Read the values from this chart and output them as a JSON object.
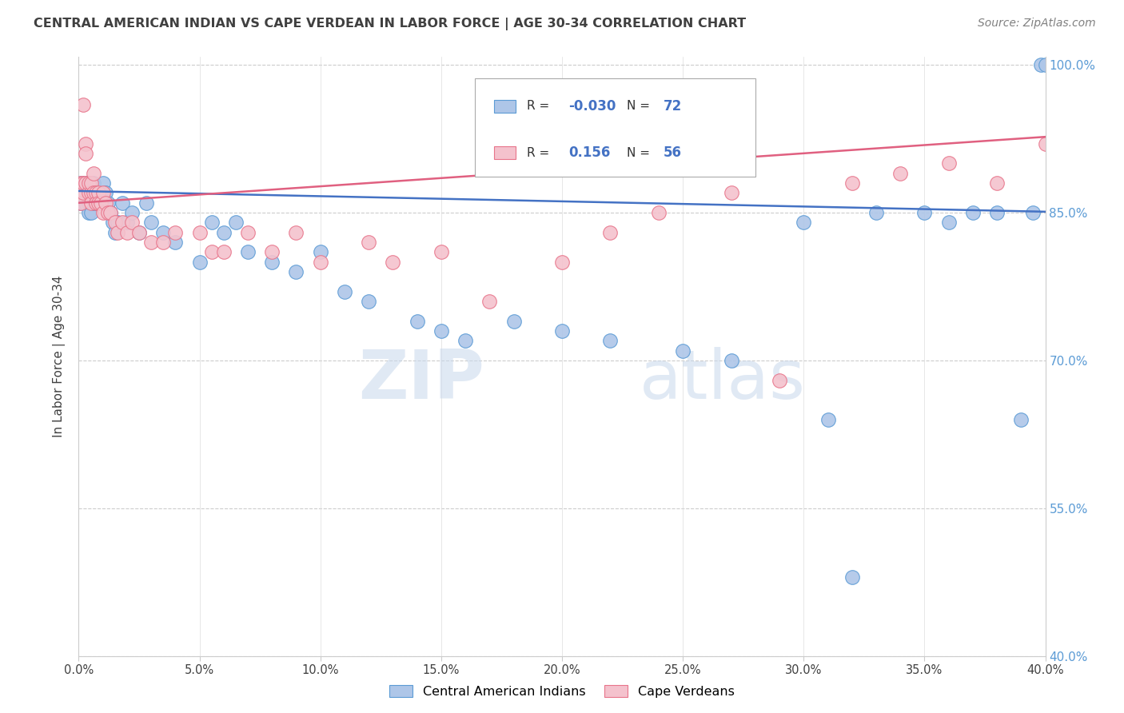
{
  "title": "CENTRAL AMERICAN INDIAN VS CAPE VERDEAN IN LABOR FORCE | AGE 30-34 CORRELATION CHART",
  "source": "Source: ZipAtlas.com",
  "ylabel": "In Labor Force | Age 30-34",
  "xlim": [
    0.0,
    0.4
  ],
  "ylim": [
    0.4,
    1.008
  ],
  "xtick_labels": [
    "0.0%",
    "",
    "5.0%",
    "",
    "10.0%",
    "",
    "15.0%",
    "",
    "20.0%",
    "",
    "25.0%",
    "",
    "30.0%",
    "",
    "35.0%",
    "",
    "40.0%"
  ],
  "xtick_vals": [
    0.0,
    0.025,
    0.05,
    0.075,
    0.1,
    0.125,
    0.15,
    0.175,
    0.2,
    0.225,
    0.25,
    0.275,
    0.3,
    0.325,
    0.35,
    0.375,
    0.4
  ],
  "ytick_vals": [
    0.4,
    0.55,
    0.7,
    0.85,
    1.0
  ],
  "ytick_labels": [
    "40.0%",
    "55.0%",
    "70.0%",
    "85.0%",
    "100.0%"
  ],
  "blue_fill": "#aec6e8",
  "blue_edge": "#5b9bd5",
  "pink_fill": "#f4c2cd",
  "pink_edge": "#e8748a",
  "blue_line": "#4472c4",
  "pink_line": "#e06080",
  "legend_r_blue": "-0.030",
  "legend_n_blue": "72",
  "legend_r_pink": "0.156",
  "legend_n_pink": "56",
  "label_blue": "Central American Indians",
  "label_pink": "Cape Verdeans",
  "watermark": "ZIPatlas",
  "right_tick_color": "#5b9bd5",
  "title_color": "#404040",
  "source_color": "#808080",
  "blue_points_x": [
    0.001,
    0.001,
    0.001,
    0.002,
    0.002,
    0.002,
    0.002,
    0.003,
    0.003,
    0.003,
    0.003,
    0.004,
    0.004,
    0.004,
    0.004,
    0.005,
    0.005,
    0.005,
    0.006,
    0.006,
    0.006,
    0.007,
    0.007,
    0.008,
    0.008,
    0.009,
    0.01,
    0.01,
    0.011,
    0.012,
    0.013,
    0.014,
    0.015,
    0.016,
    0.018,
    0.02,
    0.022,
    0.025,
    0.028,
    0.03,
    0.035,
    0.04,
    0.05,
    0.055,
    0.06,
    0.065,
    0.07,
    0.08,
    0.09,
    0.1,
    0.11,
    0.12,
    0.14,
    0.15,
    0.16,
    0.18,
    0.2,
    0.22,
    0.25,
    0.27,
    0.3,
    0.31,
    0.32,
    0.33,
    0.35,
    0.36,
    0.37,
    0.38,
    0.39,
    0.395,
    0.398,
    0.4
  ],
  "blue_points_y": [
    0.87,
    0.88,
    0.86,
    0.87,
    0.88,
    0.86,
    0.87,
    0.87,
    0.88,
    0.87,
    0.86,
    0.88,
    0.86,
    0.87,
    0.85,
    0.87,
    0.86,
    0.85,
    0.88,
    0.87,
    0.86,
    0.87,
    0.86,
    0.86,
    0.87,
    0.87,
    0.86,
    0.88,
    0.87,
    0.86,
    0.85,
    0.84,
    0.83,
    0.84,
    0.86,
    0.84,
    0.85,
    0.83,
    0.86,
    0.84,
    0.83,
    0.82,
    0.8,
    0.84,
    0.83,
    0.84,
    0.81,
    0.8,
    0.79,
    0.81,
    0.77,
    0.76,
    0.74,
    0.73,
    0.72,
    0.74,
    0.73,
    0.72,
    0.71,
    0.7,
    0.84,
    0.64,
    0.48,
    0.85,
    0.85,
    0.84,
    0.85,
    0.85,
    0.64,
    0.85,
    1.0,
    1.0
  ],
  "pink_points_x": [
    0.001,
    0.001,
    0.001,
    0.002,
    0.002,
    0.002,
    0.003,
    0.003,
    0.003,
    0.004,
    0.004,
    0.005,
    0.005,
    0.005,
    0.006,
    0.006,
    0.007,
    0.007,
    0.008,
    0.008,
    0.009,
    0.01,
    0.01,
    0.011,
    0.012,
    0.013,
    0.015,
    0.016,
    0.018,
    0.02,
    0.022,
    0.025,
    0.03,
    0.035,
    0.04,
    0.05,
    0.055,
    0.06,
    0.07,
    0.08,
    0.09,
    0.1,
    0.12,
    0.13,
    0.15,
    0.17,
    0.2,
    0.22,
    0.24,
    0.27,
    0.29,
    0.32,
    0.34,
    0.36,
    0.38,
    0.4
  ],
  "pink_points_y": [
    0.87,
    0.88,
    0.86,
    0.87,
    0.88,
    0.96,
    0.92,
    0.91,
    0.88,
    0.87,
    0.88,
    0.87,
    0.86,
    0.88,
    0.87,
    0.89,
    0.87,
    0.86,
    0.87,
    0.86,
    0.86,
    0.85,
    0.87,
    0.86,
    0.85,
    0.85,
    0.84,
    0.83,
    0.84,
    0.83,
    0.84,
    0.83,
    0.82,
    0.82,
    0.83,
    0.83,
    0.81,
    0.81,
    0.83,
    0.81,
    0.83,
    0.8,
    0.82,
    0.8,
    0.81,
    0.76,
    0.8,
    0.83,
    0.85,
    0.87,
    0.68,
    0.88,
    0.89,
    0.9,
    0.88,
    0.92
  ],
  "blue_trend_x0": 0.0,
  "blue_trend_x1": 0.4,
  "blue_trend_y0": 0.872,
  "blue_trend_y1": 0.851,
  "pink_trend_x0": 0.0,
  "pink_trend_x1": 0.4,
  "pink_trend_y0": 0.86,
  "pink_trend_y1": 0.927
}
